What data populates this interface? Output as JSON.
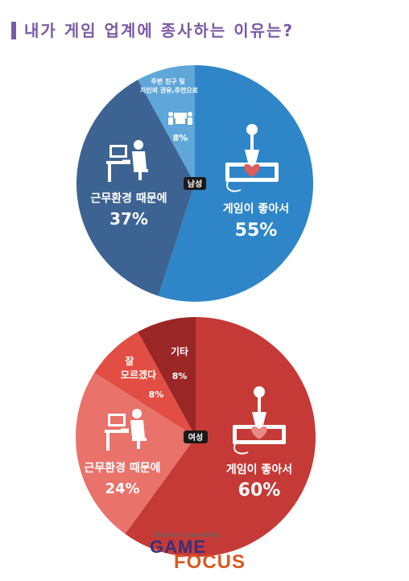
{
  "title": "내가 게임 업계에 종사하는 이유는?",
  "chart_data": [
    {
      "type": "pie",
      "center_label": "남성",
      "slices": [
        {
          "label": "게임이 좋아서",
          "value": 55,
          "value_label": "55%",
          "color": "#2e86c8",
          "icon": "joystick-heart-icon"
        },
        {
          "label": "근무환경 때문에",
          "value": 37,
          "value_label": "37%",
          "color": "#3d6392",
          "icon": "office-worker-icon"
        },
        {
          "label": "주변 친구 및 지인의 권유,추천으로",
          "value": 8,
          "value_label": "8%",
          "color": "#5fa6d9",
          "icon": "people-meeting-icon"
        }
      ]
    },
    {
      "type": "pie",
      "center_label": "여성",
      "slices": [
        {
          "label": "게임이 좋아서",
          "value": 60,
          "value_label": "60%",
          "color": "#c53a36",
          "icon": "joystick-heart-icon"
        },
        {
          "label": "근무환경 때문에",
          "value": 24,
          "value_label": "24%",
          "color": "#e9726a",
          "icon": "office-worker-icon"
        },
        {
          "label": "잘 모르겠다",
          "value": 8,
          "value_label": "8%",
          "color": "#e24e43",
          "icon": ""
        },
        {
          "label": "기타",
          "value": 8,
          "value_label": "8%",
          "color": "#9a2626",
          "icon": ""
        }
      ]
    }
  ],
  "logo": {
    "tagline": "Global No.1 Game Media",
    "word1": "GAME",
    "word2": "FOCUS"
  }
}
